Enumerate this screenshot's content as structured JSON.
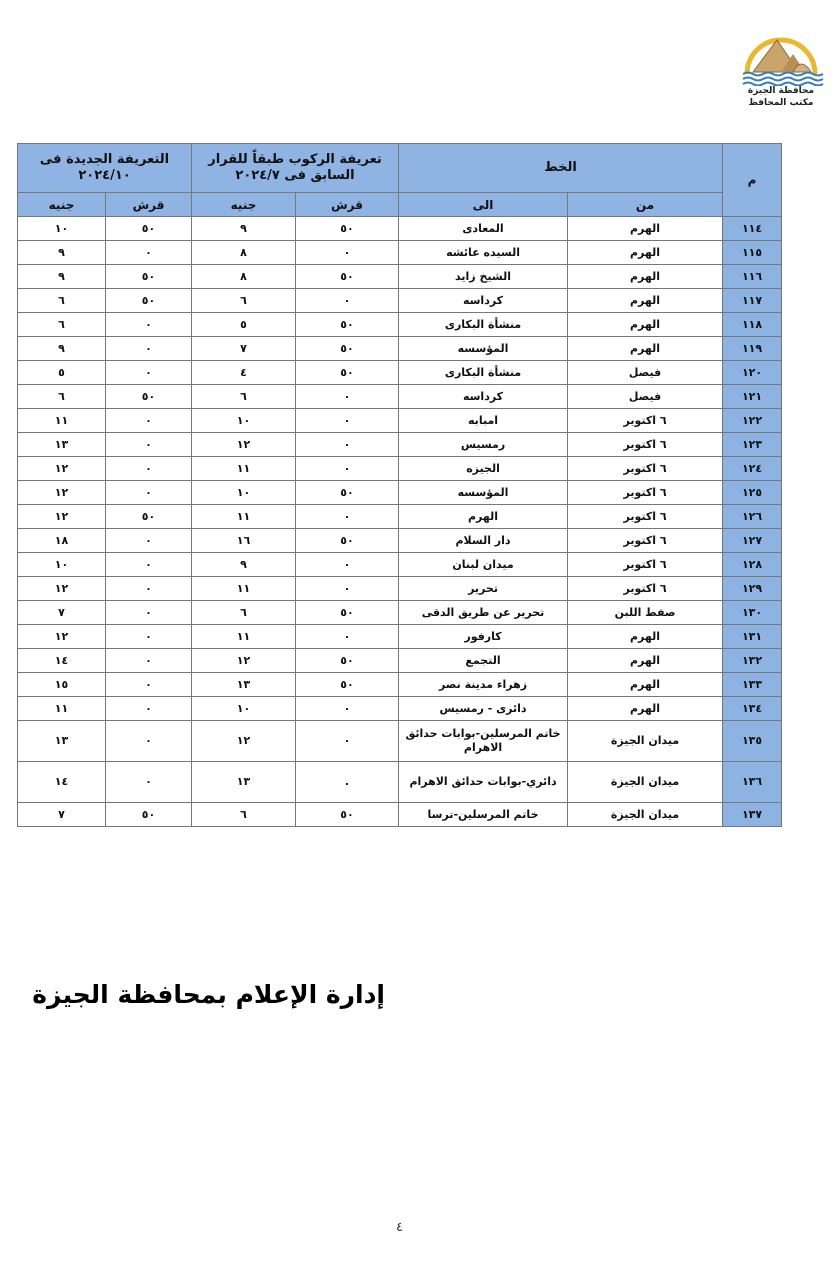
{
  "logo": {
    "line1": "محافظة الجيزة",
    "line2": "مكتب المحافظ"
  },
  "table": {
    "headers": {
      "index": "م",
      "line": "الخط",
      "from": "من",
      "to": "الى",
      "old_fare": "تعريفة الركوب طبقاً للقرار السابق فى ٢٠٢٤/٧",
      "new_fare": "التعريفة الجديدة فى ٢٠٢٤/١٠",
      "piaster": "قرش",
      "pound": "جنيه"
    },
    "rows": [
      {
        "n": "١١٤",
        "from": "الهرم",
        "to": "المعادى",
        "old_q": "٥٠",
        "old_g": "٩",
        "new_q": "٥٠",
        "new_g": "١٠"
      },
      {
        "n": "١١٥",
        "from": "الهرم",
        "to": "السيده عائشه",
        "old_q": "٠",
        "old_g": "٨",
        "new_q": "٠",
        "new_g": "٩"
      },
      {
        "n": "١١٦",
        "from": "الهرم",
        "to": "الشيخ زايد",
        "old_q": "٥٠",
        "old_g": "٨",
        "new_q": "٥٠",
        "new_g": "٩"
      },
      {
        "n": "١١٧",
        "from": "الهرم",
        "to": "كرداسه",
        "old_q": "٠",
        "old_g": "٦",
        "new_q": "٥٠",
        "new_g": "٦"
      },
      {
        "n": "١١٨",
        "from": "الهرم",
        "to": "منشأة البكارى",
        "old_q": "٥٠",
        "old_g": "٥",
        "new_q": "٠",
        "new_g": "٦"
      },
      {
        "n": "١١٩",
        "from": "الهرم",
        "to": "المؤسسه",
        "old_q": "٥٠",
        "old_g": "٧",
        "new_q": "٠",
        "new_g": "٩"
      },
      {
        "n": "١٢٠",
        "from": "فيصل",
        "to": "منشأة البكارى",
        "old_q": "٥٠",
        "old_g": "٤",
        "new_q": "٠",
        "new_g": "٥"
      },
      {
        "n": "١٢١",
        "from": "فيصل",
        "to": "كرداسه",
        "old_q": "٠",
        "old_g": "٦",
        "new_q": "٥٠",
        "new_g": "٦"
      },
      {
        "n": "١٢٢",
        "from": "٦ اكتوبر",
        "to": "امبابه",
        "old_q": "٠",
        "old_g": "١٠",
        "new_q": "٠",
        "new_g": "١١"
      },
      {
        "n": "١٢٣",
        "from": "٦ اكتوبر",
        "to": "رمسيس",
        "old_q": "٠",
        "old_g": "١٢",
        "new_q": "٠",
        "new_g": "١٣"
      },
      {
        "n": "١٢٤",
        "from": "٦ اكتوبر",
        "to": "الجيزه",
        "old_q": "٠",
        "old_g": "١١",
        "new_q": "٠",
        "new_g": "١٢"
      },
      {
        "n": "١٢٥",
        "from": "٦ اكتوبر",
        "to": "المؤسسه",
        "old_q": "٥٠",
        "old_g": "١٠",
        "new_q": "٠",
        "new_g": "١٢"
      },
      {
        "n": "١٢٦",
        "from": "٦ اكتوبر",
        "to": "الهرم",
        "old_q": "٠",
        "old_g": "١١",
        "new_q": "٥٠",
        "new_g": "١٢"
      },
      {
        "n": "١٢٧",
        "from": "٦ اكتوبر",
        "to": "دار السلام",
        "old_q": "٥٠",
        "old_g": "١٦",
        "new_q": "٠",
        "new_g": "١٨"
      },
      {
        "n": "١٢٨",
        "from": "٦ اكتوبر",
        "to": "ميدان لبنان",
        "old_q": "٠",
        "old_g": "٩",
        "new_q": "٠",
        "new_g": "١٠"
      },
      {
        "n": "١٢٩",
        "from": "٦ اكتوبر",
        "to": "تحرير",
        "old_q": "٠",
        "old_g": "١١",
        "new_q": "٠",
        "new_g": "١٢"
      },
      {
        "n": "١٣٠",
        "from": "صفط اللبن",
        "to": "تحرير عن طريق الدقى",
        "old_q": "٥٠",
        "old_g": "٦",
        "new_q": "٠",
        "new_g": "٧"
      },
      {
        "n": "١٣١",
        "from": "الهرم",
        "to": "كارفور",
        "old_q": "٠",
        "old_g": "١١",
        "new_q": "٠",
        "new_g": "١٢"
      },
      {
        "n": "١٣٢",
        "from": "الهرم",
        "to": "التجمع",
        "old_q": "٥٠",
        "old_g": "١٢",
        "new_q": "٠",
        "new_g": "١٤"
      },
      {
        "n": "١٣٣",
        "from": "الهرم",
        "to": "زهراء مدينة نصر",
        "old_q": "٥٠",
        "old_g": "١٣",
        "new_q": "٠",
        "new_g": "١٥"
      },
      {
        "n": "١٣٤",
        "from": "الهرم",
        "to": "دائرى - رمسيس",
        "old_q": "٠",
        "old_g": "١٠",
        "new_q": "٠",
        "new_g": "١١"
      },
      {
        "n": "١٣٥",
        "from": "ميدان الجيزة",
        "to": "خاتم المرسلين-بوابات حدائق الاهرام",
        "old_q": "٠",
        "old_g": "١٢",
        "new_q": "٠",
        "new_g": "١٣"
      },
      {
        "n": "١٣٦",
        "from": "ميدان الجيزة",
        "to": "دائري-بوابات حدائق الاهرام",
        "old_q": ".",
        "old_g": "١٣",
        "new_q": "٠",
        "new_g": "١٤"
      },
      {
        "n": "١٣٧",
        "from": "ميدان الجيزة",
        "to": "خاتم المرسلين-ترسا",
        "old_q": "٥٠",
        "old_g": "٦",
        "new_q": "٥٠",
        "new_g": "٧"
      }
    ]
  },
  "footer": "إدارة الإعلام بمحافظة الجيزة",
  "page_number": "٤",
  "colors": {
    "header_blue": "#8fb4e3",
    "index_blue": "#8db3e2"
  }
}
